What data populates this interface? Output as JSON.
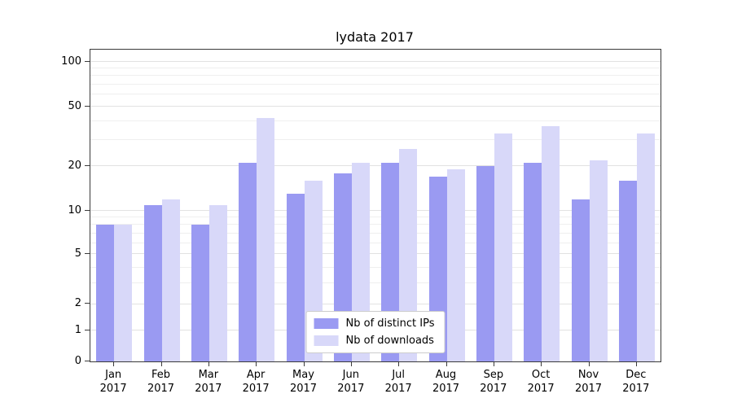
{
  "chart_data": {
    "type": "bar",
    "title": "lydata 2017",
    "categories": [
      "Jan",
      "Feb",
      "Mar",
      "Apr",
      "May",
      "Jun",
      "Jul",
      "Aug",
      "Sep",
      "Oct",
      "Nov",
      "Dec"
    ],
    "category_year": "2017",
    "series": [
      {
        "name": "Nb of distinct IPs",
        "color": "#9a9af2",
        "values": [
          8,
          11,
          8,
          21,
          13,
          18,
          21,
          17,
          20,
          21,
          12,
          16
        ]
      },
      {
        "name": "Nb of downloads",
        "color": "#d8d8f9",
        "values": [
          8,
          12,
          11,
          42,
          16,
          21,
          26,
          19,
          33,
          37,
          22,
          33
        ]
      }
    ],
    "yscale": "symlog",
    "yticks": [
      0,
      1,
      2,
      5,
      10,
      20,
      50,
      100
    ],
    "minor_yticks": [
      3,
      4,
      6,
      7,
      8,
      9,
      30,
      40,
      60,
      70,
      80,
      90
    ],
    "ylim": [
      0,
      120
    ],
    "grid": true,
    "legend_position": "lower center"
  }
}
